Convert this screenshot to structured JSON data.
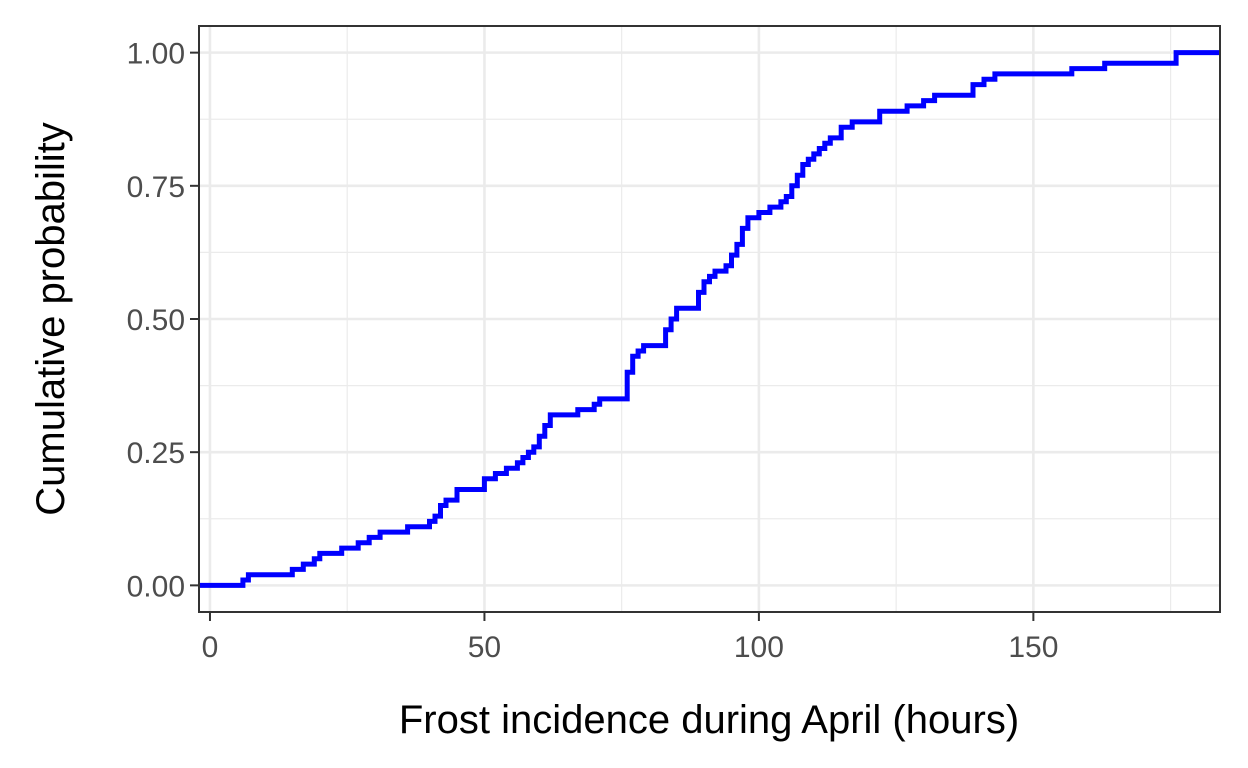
{
  "chart_data": {
    "type": "line",
    "title": "",
    "xlabel": "Frost incidence during April (hours)",
    "ylabel": "Cumulative probability",
    "xlim": [
      -2,
      184
    ],
    "ylim": [
      -0.05,
      1.05
    ],
    "x_ticks": [
      0,
      50,
      100,
      150
    ],
    "x_tick_labels": [
      "0",
      "50",
      "100",
      "150"
    ],
    "y_ticks": [
      0,
      0.25,
      0.5,
      0.75,
      1
    ],
    "y_tick_labels": [
      "0.00",
      "0.25",
      "0.50",
      "0.75",
      "1.00"
    ],
    "grid": true,
    "legend": "none",
    "series": [
      {
        "color": "#0000ff",
        "step": true,
        "x": [
          -2,
          6,
          7,
          15,
          17,
          19,
          20,
          24,
          27,
          29,
          31,
          33,
          36,
          40,
          41,
          42,
          43,
          45,
          50,
          52,
          54,
          56,
          57,
          58,
          59,
          60,
          61,
          62,
          67,
          70,
          71,
          76,
          77,
          78,
          79,
          83,
          84,
          85,
          89,
          90,
          91,
          92,
          94,
          95,
          96,
          97,
          98,
          100,
          102,
          104,
          105,
          106,
          107,
          108,
          109,
          110,
          111,
          112,
          113,
          115,
          117,
          122,
          127,
          130,
          132,
          139,
          141,
          143,
          145,
          157,
          163,
          176,
          184
        ],
        "y": [
          0,
          0.01,
          0.02,
          0.03,
          0.04,
          0.05,
          0.06,
          0.07,
          0.08,
          0.09,
          0.1,
          0.1,
          0.11,
          0.12,
          0.13,
          0.15,
          0.16,
          0.18,
          0.2,
          0.21,
          0.22,
          0.23,
          0.24,
          0.25,
          0.26,
          0.28,
          0.3,
          0.32,
          0.33,
          0.34,
          0.35,
          0.4,
          0.43,
          0.44,
          0.45,
          0.48,
          0.5,
          0.52,
          0.55,
          0.57,
          0.58,
          0.59,
          0.6,
          0.62,
          0.64,
          0.67,
          0.69,
          0.7,
          0.71,
          0.72,
          0.73,
          0.75,
          0.77,
          0.79,
          0.8,
          0.81,
          0.82,
          0.83,
          0.84,
          0.86,
          0.87,
          0.89,
          0.9,
          0.91,
          0.92,
          0.94,
          0.95,
          0.96,
          0.96,
          0.97,
          0.98,
          1.0,
          1.0
        ]
      }
    ]
  }
}
